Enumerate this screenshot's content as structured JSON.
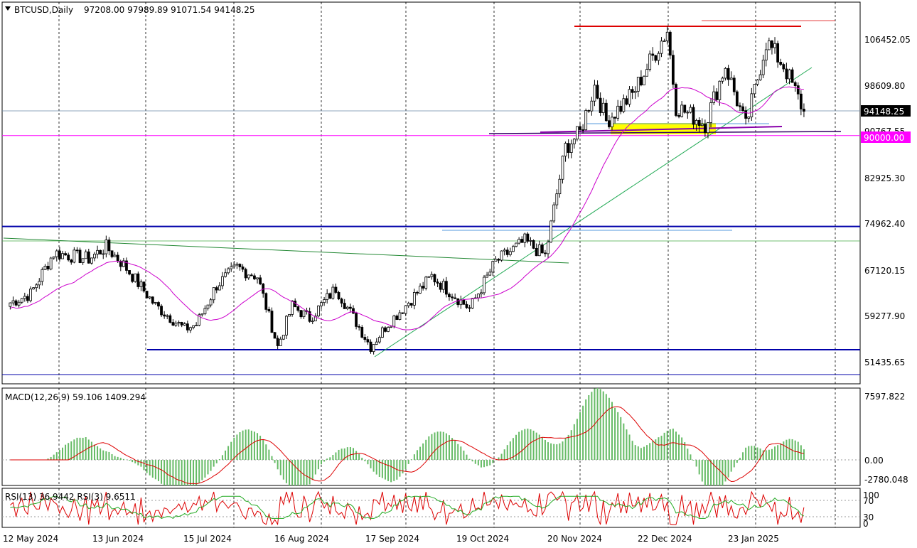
{
  "header": {
    "symbol": "BTCUSD,Daily",
    "ohlc": "97208.00 97989.89 91071.54 94148.25"
  },
  "macd_header": "MACD(12,26,9) 59.106 1409.294",
  "rsi_header": "RSI(13) 36.9442 RSI(3) 9.6511",
  "price_axis": [
    "106452.05",
    "98609.80",
    "90767.55",
    "82925.30",
    "74962.40",
    "67120.15",
    "59277.90",
    "51435.65"
  ],
  "current_price_label": "94148.25",
  "level_label": "90000.00",
  "macd_axis": [
    "7597.822",
    "0.00",
    "-2780.048"
  ],
  "rsi_axis": [
    "100",
    "70",
    "30",
    "0"
  ],
  "date_axis": [
    "12 May 2024",
    "13 Jun 2024",
    "15 Jul 2024",
    "16 Aug 2024",
    "17 Sep 2024",
    "19 Oct 2024",
    "20 Nov 2024",
    "22 Dec 2024",
    "23 Jan 2025"
  ],
  "colors": {
    "up_candle": "#ffffff",
    "down_candle": "#000000",
    "ma": "#cc00cc",
    "macd_hist": "#66bb66",
    "macd_signal": "#dd0000",
    "rsi13": "#22aa22",
    "rsi3": "#dd0000",
    "level_line": "#ff00ff",
    "support": "#0000aa",
    "resistance": "#dd0000",
    "trendline": "#22aa55",
    "highlight": "#ffff00",
    "price_tag_bg": "#000000",
    "level_tag_bg": "#ff00ff"
  },
  "chart_data": {
    "type": "candlestick",
    "title": "BTCUSD,Daily",
    "ylim": [
      49000,
      110500
    ],
    "x": [
      "12 May 2024",
      "13 Jun 2024",
      "15 Jul 2024",
      "16 Aug 2024",
      "17 Sep 2024",
      "19 Oct 2024",
      "20 Nov 2024",
      "22 Dec 2024",
      "23 Jan 2025"
    ],
    "close_path": [
      [
        "2024-05-05",
        61500
      ],
      [
        "2024-05-12",
        63000
      ],
      [
        "2024-05-20",
        70000
      ],
      [
        "2024-06-01",
        69000
      ],
      [
        "2024-06-07",
        71000
      ],
      [
        "2024-06-13",
        68000
      ],
      [
        "2024-06-24",
        61000
      ],
      [
        "2024-07-04",
        57000
      ],
      [
        "2024-07-08",
        57800
      ],
      [
        "2024-07-15",
        64500
      ],
      [
        "2024-07-22",
        67500
      ],
      [
        "2024-07-29",
        66000
      ],
      [
        "2024-08-05",
        54000
      ],
      [
        "2024-08-10",
        61000
      ],
      [
        "2024-08-16",
        58800
      ],
      [
        "2024-08-25",
        64000
      ],
      [
        "2024-09-06",
        54000
      ],
      [
        "2024-09-12",
        58000
      ],
      [
        "2024-09-17",
        60500
      ],
      [
        "2024-09-27",
        66000
      ],
      [
        "2024-10-10",
        60500
      ],
      [
        "2024-10-19",
        68500
      ],
      [
        "2024-10-29",
        72000
      ],
      [
        "2024-11-05",
        69500
      ],
      [
        "2024-11-12",
        88000
      ],
      [
        "2024-11-17",
        90500
      ],
      [
        "2024-11-22",
        98500
      ],
      [
        "2024-11-26",
        92500
      ],
      [
        "2024-12-05",
        97000
      ],
      [
        "2024-12-17",
        108000
      ],
      [
        "2024-12-20",
        95000
      ],
      [
        "2024-12-30",
        92000
      ],
      [
        "2025-01-06",
        102000
      ],
      [
        "2025-01-13",
        91500
      ],
      [
        "2025-01-20",
        106000
      ],
      [
        "2025-01-26",
        102000
      ],
      [
        "2025-02-02",
        94148
      ]
    ],
    "levels": {
      "current": 94148.25,
      "support_line": 90000.0,
      "upper_blue": 74500,
      "lower_blue": 53500,
      "resistance": 108500
    },
    "macd": {
      "macd": 59.106,
      "signal": 1409.294,
      "ylim": [
        -2780.048,
        7597.822
      ]
    },
    "rsi": {
      "rsi13": 36.9442,
      "rsi3": 9.6511,
      "levels": [
        70,
        30
      ],
      "ylim": [
        0,
        100
      ]
    }
  }
}
